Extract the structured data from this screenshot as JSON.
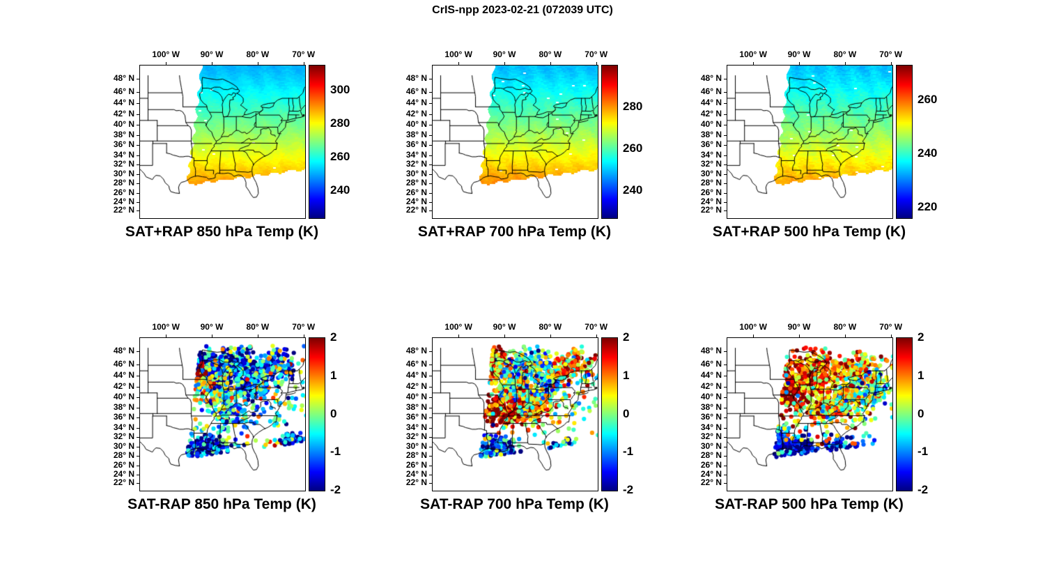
{
  "figure": {
    "title": "CrIS-npp 2023-02-21 (072039 UTC)",
    "background": "#ffffff"
  },
  "axes": {
    "lon_tick_labels": [
      "100° W",
      "90° W",
      "80° W",
      "70° W"
    ],
    "lon_tick_deg_west": [
      100,
      90,
      80,
      70
    ],
    "lat_tick_labels": [
      "48° N",
      "46° N",
      "44° N",
      "42° N",
      "40° N",
      "38° N",
      "36° N",
      "34° N",
      "32° N",
      "30° N",
      "28° N",
      "26° N",
      "24° N",
      "22° N"
    ],
    "lat_tick_deg_north": [
      48,
      46,
      44,
      42,
      40,
      38,
      36,
      34,
      32,
      30,
      28,
      26,
      24,
      22
    ]
  },
  "swath_extent": {
    "left_edge_lon_north": -92.5,
    "left_edge_lon_south": -95.5,
    "south_edge_west": [
      -95.5,
      27.8
    ],
    "south_edge_east": [
      -69.8,
      31.2
    ]
  },
  "chart_data": [
    {
      "id": "sat-plus-rap-850",
      "row": 0,
      "col": 0,
      "type": "heatmap",
      "title": "SAT+RAP 850 hPa Temp (K)",
      "colormap": "jet",
      "colorbar_range_k": [
        224,
        315
      ],
      "colorbar_tick_labels": [
        "300",
        "280",
        "260",
        "240"
      ],
      "colorbar_tick_values": [
        300,
        280,
        260,
        240
      ],
      "temp_north_k": 253,
      "temp_south_k": 290
    },
    {
      "id": "sat-plus-rap-700",
      "row": 0,
      "col": 1,
      "type": "heatmap",
      "title": "SAT+RAP 700 hPa Temp (K)",
      "colormap": "jet",
      "colorbar_range_k": [
        227,
        300
      ],
      "colorbar_tick_labels": [
        "280",
        "260",
        "240"
      ],
      "colorbar_tick_values": [
        280,
        260,
        240
      ],
      "temp_north_k": 251,
      "temp_south_k": 281
    },
    {
      "id": "sat-plus-rap-500",
      "row": 0,
      "col": 2,
      "type": "heatmap",
      "title": "SAT+RAP 500 hPa Temp (K)",
      "colormap": "jet",
      "colorbar_range_k": [
        216,
        273
      ],
      "colorbar_tick_labels": [
        "260",
        "240",
        "220"
      ],
      "colorbar_tick_values": [
        260,
        240,
        220
      ],
      "temp_north_k": 235,
      "temp_south_k": 257
    },
    {
      "id": "sat-minus-rap-850",
      "row": 1,
      "col": 0,
      "type": "scatter",
      "title": "SAT-RAP 850 hPa Temp (K)",
      "colormap": "jet",
      "colorbar_range_k": [
        -2,
        2
      ],
      "colorbar_tick_labels": [
        "2",
        "1",
        "0",
        "-1",
        "-2"
      ],
      "colorbar_tick_values": [
        2,
        1,
        0,
        -1,
        -2
      ],
      "noise_k": 0.9,
      "dot_clusters": [
        {
          "lon": -91.5,
          "lat": 45.3,
          "sigma_lon": 2.2,
          "sigma_lat": 1.6,
          "count": 240,
          "mean_diff_k": -1.6
        },
        {
          "lon": -85.0,
          "lat": 45.8,
          "sigma_lon": 2.8,
          "sigma_lat": 1.4,
          "count": 200,
          "mean_diff_k": -1.7
        },
        {
          "lon": -76.5,
          "lat": 45.8,
          "sigma_lon": 2.4,
          "sigma_lat": 1.3,
          "count": 150,
          "mean_diff_k": -1.3
        },
        {
          "lon": -94.0,
          "lat": 43.8,
          "sigma_lon": 1.2,
          "sigma_lat": 1.3,
          "count": 110,
          "mean_diff_k": 1.5
        },
        {
          "lon": -90.5,
          "lat": 41.5,
          "sigma_lon": 2.2,
          "sigma_lat": 1.8,
          "count": 130,
          "mean_diff_k": 0.3
        },
        {
          "lon": -81.5,
          "lat": 42.3,
          "sigma_lon": 2.0,
          "sigma_lat": 1.4,
          "count": 110,
          "mean_diff_k": -0.9
        },
        {
          "lon": -86.5,
          "lat": 38.0,
          "sigma_lon": 1.6,
          "sigma_lat": 2.6,
          "count": 90,
          "mean_diff_k": -0.6
        },
        {
          "lon": -93.0,
          "lat": 29.6,
          "sigma_lon": 2.4,
          "sigma_lat": 1.2,
          "count": 160,
          "mean_diff_k": -1.7
        },
        {
          "lon": -88.8,
          "lat": 30.2,
          "sigma_lon": 1.2,
          "sigma_lat": 0.9,
          "count": 70,
          "mean_diff_k": -1.2
        },
        {
          "lon": -75.5,
          "lat": 28.2,
          "sigma_lon": 1.8,
          "sigma_lat": 1.5,
          "count": 150,
          "mean_diff_k": 0.5
        },
        {
          "lon": -72.8,
          "lat": 30.8,
          "sigma_lon": 1.3,
          "sigma_lat": 1.1,
          "count": 80,
          "mean_diff_k": -1.0
        },
        {
          "lon": -83.0,
          "lat": 40.0,
          "sigma_lon": 9.0,
          "sigma_lat": 6.0,
          "count": 260,
          "mean_diff_k": -0.2
        }
      ]
    },
    {
      "id": "sat-minus-rap-700",
      "row": 1,
      "col": 1,
      "type": "scatter",
      "title": "SAT-RAP 700 hPa Temp (K)",
      "colormap": "jet",
      "colorbar_range_k": [
        -2,
        2
      ],
      "colorbar_tick_labels": [
        "2",
        "1",
        "0",
        "-1",
        "-2"
      ],
      "colorbar_tick_values": [
        2,
        1,
        0,
        -1,
        -2
      ],
      "noise_k": 0.9,
      "dot_clusters": [
        {
          "lon": -93.5,
          "lat": 46.5,
          "sigma_lon": 2.2,
          "sigma_lat": 1.4,
          "count": 190,
          "mean_diff_k": 1.2
        },
        {
          "lon": -85.0,
          "lat": 45.8,
          "sigma_lon": 2.8,
          "sigma_lat": 1.4,
          "count": 190,
          "mean_diff_k": -0.5
        },
        {
          "lon": -75.5,
          "lat": 45.5,
          "sigma_lon": 2.2,
          "sigma_lat": 1.4,
          "count": 150,
          "mean_diff_k": 0.9
        },
        {
          "lon": -90.0,
          "lat": 37.5,
          "sigma_lon": 2.8,
          "sigma_lat": 1.4,
          "count": 240,
          "mean_diff_k": 1.8
        },
        {
          "lon": -84.5,
          "lat": 38.6,
          "sigma_lon": 2.0,
          "sigma_lat": 1.4,
          "count": 130,
          "mean_diff_k": 1.0
        },
        {
          "lon": -88.5,
          "lat": 42.0,
          "sigma_lon": 2.4,
          "sigma_lat": 1.6,
          "count": 130,
          "mean_diff_k": -0.3
        },
        {
          "lon": -92.5,
          "lat": 30.0,
          "sigma_lon": 2.4,
          "sigma_lat": 1.4,
          "count": 170,
          "mean_diff_k": -1.2
        },
        {
          "lon": -76.0,
          "lat": 28.5,
          "sigma_lon": 1.9,
          "sigma_lat": 1.6,
          "count": 160,
          "mean_diff_k": -1.1
        },
        {
          "lon": -80.5,
          "lat": 42.5,
          "sigma_lon": 1.5,
          "sigma_lat": 1.1,
          "count": 80,
          "mean_diff_k": -0.6
        },
        {
          "lon": -82.0,
          "lat": 40.0,
          "sigma_lon": 9.0,
          "sigma_lat": 6.0,
          "count": 240,
          "mean_diff_k": 0.1
        }
      ]
    },
    {
      "id": "sat-minus-rap-500",
      "row": 1,
      "col": 2,
      "type": "scatter",
      "title": "SAT-RAP 500 hPa Temp (K)",
      "colormap": "jet",
      "colorbar_range_k": [
        -2,
        2
      ],
      "colorbar_tick_labels": [
        "2",
        "1",
        "0",
        "-1",
        "-2"
      ],
      "colorbar_tick_values": [
        2,
        1,
        0,
        -1,
        -2
      ],
      "noise_k": 0.8,
      "dot_clusters": [
        {
          "lon": -92.0,
          "lat": 42.5,
          "sigma_lon": 2.8,
          "sigma_lat": 2.4,
          "count": 330,
          "mean_diff_k": 1.9
        },
        {
          "lon": -86.0,
          "lat": 44.5,
          "sigma_lon": 3.0,
          "sigma_lat": 1.8,
          "count": 240,
          "mean_diff_k": 1.2
        },
        {
          "lon": -77.0,
          "lat": 45.3,
          "sigma_lon": 2.4,
          "sigma_lat": 1.4,
          "count": 150,
          "mean_diff_k": 0.8
        },
        {
          "lon": -84.0,
          "lat": 38.5,
          "sigma_lon": 2.4,
          "sigma_lat": 1.4,
          "count": 150,
          "mean_diff_k": 0.9
        },
        {
          "lon": -78.0,
          "lat": 40.5,
          "sigma_lon": 2.0,
          "sigma_lat": 1.8,
          "count": 150,
          "mean_diff_k": 0.0
        },
        {
          "lon": -73.5,
          "lat": 41.5,
          "sigma_lon": 1.4,
          "sigma_lat": 1.4,
          "count": 90,
          "mean_diff_k": -0.4
        },
        {
          "lon": -91.0,
          "lat": 29.8,
          "sigma_lon": 2.8,
          "sigma_lat": 1.4,
          "count": 240,
          "mean_diff_k": -1.8
        },
        {
          "lon": -80.5,
          "lat": 29.0,
          "sigma_lon": 2.4,
          "sigma_lat": 1.7,
          "count": 190,
          "mean_diff_k": -1.5
        },
        {
          "lon": -96.0,
          "lat": 33.0,
          "sigma_lon": 1.4,
          "sigma_lat": 1.4,
          "count": 80,
          "mean_diff_k": -1.0
        },
        {
          "lon": -83.0,
          "lat": 39.0,
          "sigma_lon": 9.0,
          "sigma_lat": 6.0,
          "count": 220,
          "mean_diff_k": 0.4
        }
      ]
    }
  ]
}
